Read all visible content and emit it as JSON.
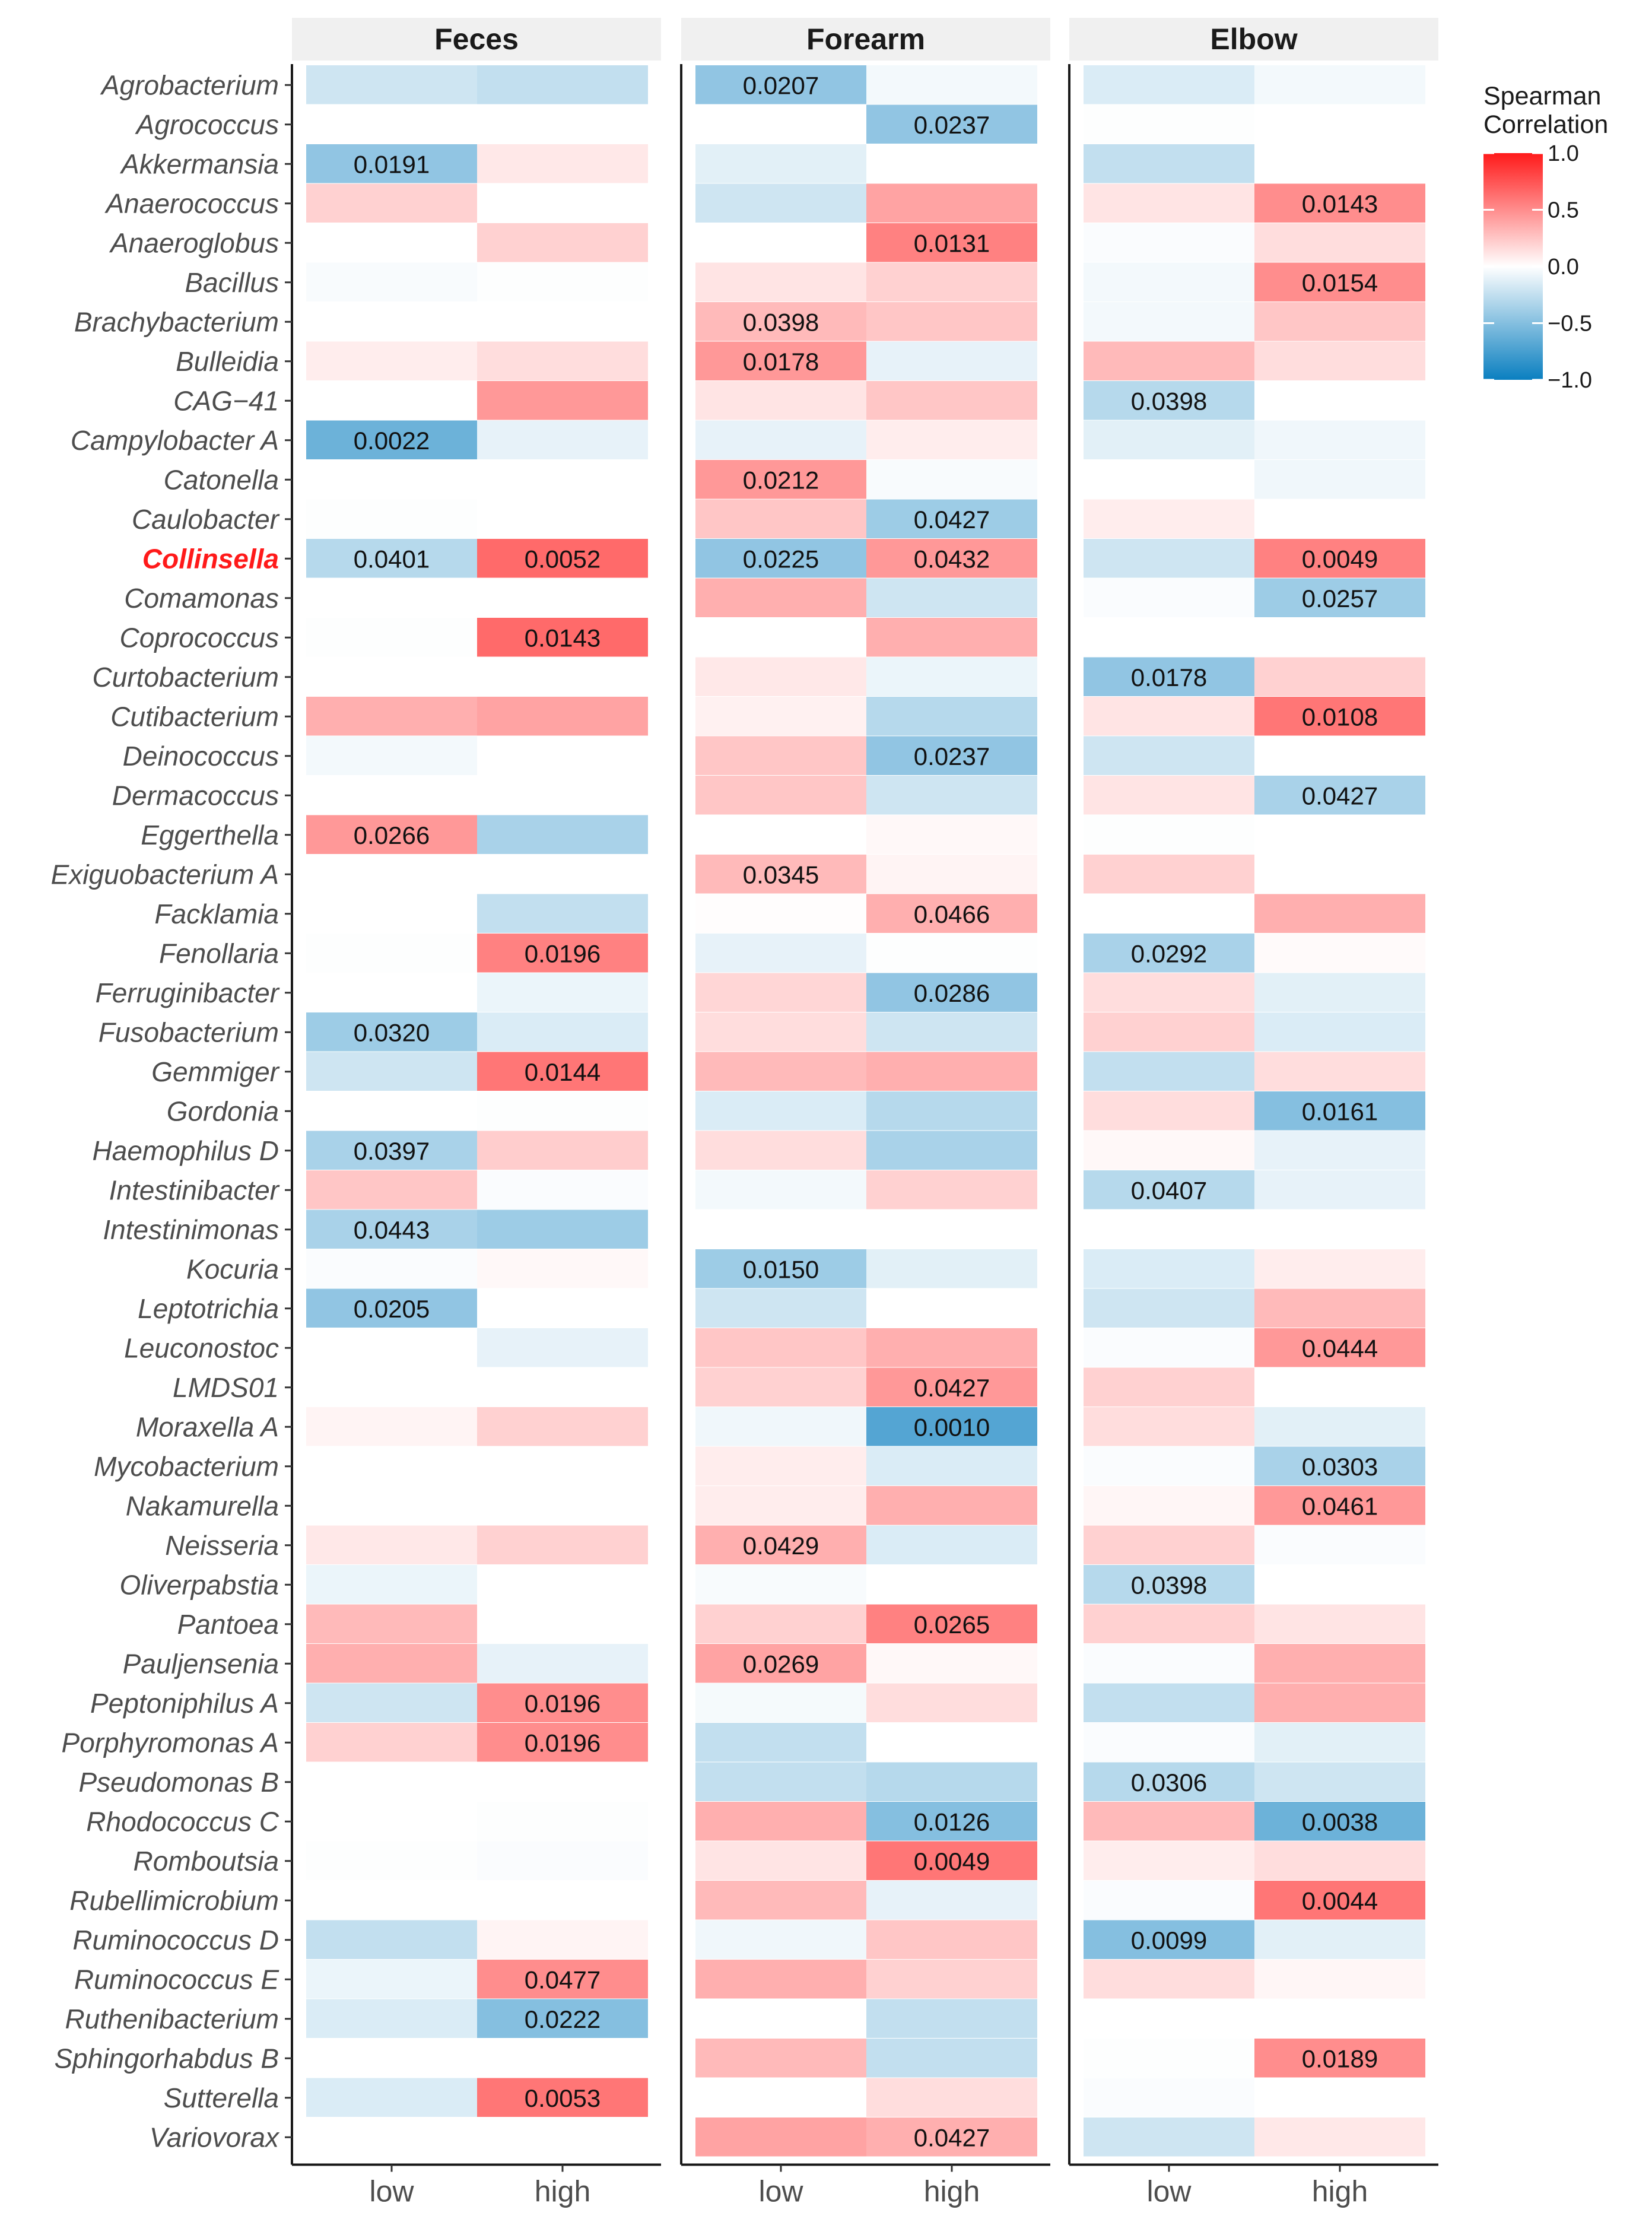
{
  "chart_data": {
    "type": "heatmap",
    "facets": [
      "Feces",
      "Forearm",
      "Elbow"
    ],
    "columns": [
      "low",
      "high"
    ],
    "highlight_row": "Collinsella",
    "rows": [
      "Agrobacterium",
      "Agrococcus",
      "Akkermansia",
      "Anaerococcus",
      "Anaeroglobus",
      "Bacillus",
      "Brachybacterium",
      "Bulleidia",
      "CAG−41",
      "Campylobacter A",
      "Catonella",
      "Caulobacter",
      "Collinsella",
      "Comamonas",
      "Coprococcus",
      "Curtobacterium",
      "Cutibacterium",
      "Deinococcus",
      "Dermacoccus",
      "Eggerthella",
      "Exiguobacterium A",
      "Facklamia",
      "Fenollaria",
      "Ferruginibacter",
      "Fusobacterium",
      "Gemmiger",
      "Gordonia",
      "Haemophilus D",
      "Intestinibacter",
      "Intestinimonas",
      "Kocuria",
      "Leptotrichia",
      "Leuconostoc",
      "LMDS01",
      "Moraxella A",
      "Mycobacterium",
      "Nakamurella",
      "Neisseria",
      "Oliverpabstia",
      "Pantoea",
      "Pauljensenia",
      "Peptoniphilus A",
      "Porphyromonas A",
      "Pseudomonas B",
      "Rhodococcus C",
      "Romboutsia",
      "Rubellimicrobium",
      "Ruminococcus D",
      "Ruminococcus E",
      "Ruthenibacterium",
      "Sphingorhabdus B",
      "Sutterella",
      "Variovorax"
    ],
    "values": {
      "Feces": [
        [
          -0.2,
          -0.25
        ],
        [
          null,
          null
        ],
        [
          -0.45,
          0.1
        ],
        [
          0.2,
          null
        ],
        [
          null,
          0.2
        ],
        [
          -0.03,
          -0.01
        ],
        [
          null,
          null
        ],
        [
          0.08,
          0.15
        ],
        [
          null,
          0.45
        ],
        [
          -0.6,
          -0.1
        ],
        [
          null,
          null
        ],
        [
          -0.01,
          null
        ],
        [
          -0.3,
          0.65
        ],
        [
          null,
          null
        ],
        [
          -0.01,
          0.65
        ],
        [
          null,
          null
        ],
        [
          0.35,
          0.4
        ],
        [
          -0.05,
          null
        ],
        [
          null,
          null
        ],
        [
          0.45,
          -0.35
        ],
        [
          null,
          null
        ],
        [
          null,
          -0.25
        ],
        [
          -0.01,
          0.55
        ],
        [
          null,
          -0.08
        ],
        [
          -0.4,
          -0.15
        ],
        [
          -0.2,
          0.6
        ],
        [
          null,
          -0.01
        ],
        [
          -0.35,
          0.22
        ],
        [
          0.25,
          -0.02
        ],
        [
          -0.35,
          -0.4
        ],
        [
          -0.02,
          0.03
        ],
        [
          -0.45,
          null
        ],
        [
          null,
          -0.1
        ],
        [
          null,
          null
        ],
        [
          0.05,
          0.2
        ],
        [
          null,
          null
        ],
        [
          null,
          null
        ],
        [
          0.1,
          0.2
        ],
        [
          -0.08,
          null
        ],
        [
          0.3,
          null
        ],
        [
          0.35,
          -0.1
        ],
        [
          -0.2,
          0.5
        ],
        [
          0.2,
          0.5
        ],
        [
          null,
          null
        ],
        [
          null,
          -0.01
        ],
        [
          -0.01,
          -0.02
        ],
        [
          null,
          null
        ],
        [
          -0.25,
          0.05
        ],
        [
          -0.08,
          0.5
        ],
        [
          -0.15,
          -0.5
        ],
        [
          null,
          null
        ],
        [
          -0.15,
          0.6
        ],
        [
          null,
          null
        ]
      ],
      "Forearm": [
        [
          -0.45,
          -0.05
        ],
        [
          null,
          -0.45
        ],
        [
          -0.12,
          null
        ],
        [
          -0.2,
          0.4
        ],
        [
          null,
          0.55
        ],
        [
          0.12,
          0.2
        ],
        [
          0.3,
          0.25
        ],
        [
          0.45,
          -0.1
        ],
        [
          0.12,
          0.25
        ],
        [
          -0.1,
          0.08
        ],
        [
          0.45,
          -0.03
        ],
        [
          0.25,
          -0.4
        ],
        [
          -0.45,
          0.45
        ],
        [
          0.35,
          -0.2
        ],
        [
          null,
          0.35
        ],
        [
          0.1,
          -0.08
        ],
        [
          0.06,
          -0.3
        ],
        [
          0.25,
          -0.45
        ],
        [
          0.25,
          -0.2
        ],
        [
          null,
          0.03
        ],
        [
          0.3,
          0.05
        ],
        [
          0.01,
          0.35
        ],
        [
          -0.1,
          -0.01
        ],
        [
          0.18,
          -0.45
        ],
        [
          0.15,
          -0.2
        ],
        [
          0.3,
          0.35
        ],
        [
          -0.15,
          -0.3
        ],
        [
          0.15,
          -0.35
        ],
        [
          -0.05,
          0.2
        ],
        [
          null,
          null
        ],
        [
          -0.4,
          -0.12
        ],
        [
          -0.2,
          null
        ],
        [
          0.25,
          0.35
        ],
        [
          0.2,
          0.45
        ],
        [
          -0.06,
          -0.7
        ],
        [
          0.08,
          -0.15
        ],
        [
          0.08,
          0.35
        ],
        [
          0.35,
          -0.15
        ],
        [
          -0.03,
          null
        ],
        [
          0.2,
          0.55
        ],
        [
          0.4,
          0.03
        ],
        [
          -0.04,
          0.15
        ],
        [
          -0.25,
          null
        ],
        [
          -0.25,
          -0.3
        ],
        [
          0.35,
          -0.5
        ],
        [
          0.12,
          0.6
        ],
        [
          0.3,
          -0.1
        ],
        [
          -0.06,
          0.25
        ],
        [
          0.35,
          0.2
        ],
        [
          null,
          -0.25
        ],
        [
          0.3,
          -0.25
        ],
        [
          null,
          0.15
        ],
        [
          0.4,
          0.35
        ]
      ],
      "Elbow": [
        [
          -0.15,
          -0.05
        ],
        [
          -0.01,
          null
        ],
        [
          -0.25,
          null
        ],
        [
          0.12,
          0.5
        ],
        [
          -0.02,
          0.15
        ],
        [
          -0.05,
          0.5
        ],
        [
          -0.05,
          0.25
        ],
        [
          0.3,
          0.15
        ],
        [
          -0.3,
          null
        ],
        [
          -0.12,
          -0.06
        ],
        [
          null,
          -0.06
        ],
        [
          0.08,
          null
        ],
        [
          -0.2,
          0.55
        ],
        [
          -0.02,
          -0.4
        ],
        [
          null,
          null
        ],
        [
          -0.45,
          0.2
        ],
        [
          0.12,
          0.6
        ],
        [
          -0.2,
          null
        ],
        [
          0.12,
          -0.35
        ],
        [
          -0.01,
          null
        ],
        [
          0.2,
          null
        ],
        [
          null,
          0.35
        ],
        [
          -0.35,
          0.02
        ],
        [
          0.15,
          -0.12
        ],
        [
          0.2,
          -0.15
        ],
        [
          -0.25,
          0.15
        ],
        [
          0.15,
          -0.5
        ],
        [
          0.03,
          -0.1
        ],
        [
          -0.3,
          -0.1
        ],
        [
          null,
          null
        ],
        [
          -0.15,
          0.08
        ],
        [
          -0.2,
          0.3
        ],
        [
          -0.02,
          0.45
        ],
        [
          0.2,
          null
        ],
        [
          0.15,
          -0.12
        ],
        [
          -0.02,
          -0.35
        ],
        [
          0.04,
          0.45
        ],
        [
          0.2,
          -0.02
        ],
        [
          -0.3,
          null
        ],
        [
          0.2,
          0.12
        ],
        [
          -0.02,
          0.35
        ],
        [
          -0.25,
          0.35
        ],
        [
          -0.02,
          -0.12
        ],
        [
          -0.3,
          -0.2
        ],
        [
          0.3,
          -0.6
        ],
        [
          0.08,
          0.15
        ],
        [
          -0.02,
          0.6
        ],
        [
          -0.5,
          -0.12
        ],
        [
          0.15,
          0.04
        ],
        [
          null,
          null
        ],
        [
          -0.01,
          0.5
        ],
        [
          -0.02,
          null
        ],
        [
          -0.2,
          0.1
        ]
      ]
    },
    "cell_labels": [
      {
        "facet": "Feces",
        "row": "Akkermansia",
        "col": "low",
        "text": "0.0191"
      },
      {
        "facet": "Feces",
        "row": "Campylobacter A",
        "col": "low",
        "text": "0.0022"
      },
      {
        "facet": "Feces",
        "row": "Collinsella",
        "col": "low",
        "text": "0.0401"
      },
      {
        "facet": "Feces",
        "row": "Collinsella",
        "col": "high",
        "text": "0.0052"
      },
      {
        "facet": "Feces",
        "row": "Coprococcus",
        "col": "high",
        "text": "0.0143"
      },
      {
        "facet": "Feces",
        "row": "Eggerthella",
        "col": "low",
        "text": "0.0266"
      },
      {
        "facet": "Feces",
        "row": "Fenollaria",
        "col": "high",
        "text": "0.0196"
      },
      {
        "facet": "Feces",
        "row": "Fusobacterium",
        "col": "low",
        "text": "0.0320"
      },
      {
        "facet": "Feces",
        "row": "Gemmiger",
        "col": "high",
        "text": "0.0144"
      },
      {
        "facet": "Feces",
        "row": "Haemophilus D",
        "col": "low",
        "text": "0.0397"
      },
      {
        "facet": "Feces",
        "row": "Intestinimonas",
        "col": "low",
        "text": "0.0443"
      },
      {
        "facet": "Feces",
        "row": "Leptotrichia",
        "col": "low",
        "text": "0.0205"
      },
      {
        "facet": "Feces",
        "row": "Peptoniphilus A",
        "col": "high",
        "text": "0.0196"
      },
      {
        "facet": "Feces",
        "row": "Porphyromonas A",
        "col": "high",
        "text": "0.0196"
      },
      {
        "facet": "Feces",
        "row": "Ruminococcus E",
        "col": "high",
        "text": "0.0477"
      },
      {
        "facet": "Feces",
        "row": "Ruthenibacterium",
        "col": "high",
        "text": "0.0222"
      },
      {
        "facet": "Feces",
        "row": "Sutterella",
        "col": "high",
        "text": "0.0053"
      },
      {
        "facet": "Forearm",
        "row": "Agrobacterium",
        "col": "low",
        "text": "0.0207"
      },
      {
        "facet": "Forearm",
        "row": "Agrococcus",
        "col": "high",
        "text": "0.0237"
      },
      {
        "facet": "Forearm",
        "row": "Anaeroglobus",
        "col": "high",
        "text": "0.0131"
      },
      {
        "facet": "Forearm",
        "row": "Brachybacterium",
        "col": "low",
        "text": "0.0398"
      },
      {
        "facet": "Forearm",
        "row": "Bulleidia",
        "col": "low",
        "text": "0.0178"
      },
      {
        "facet": "Forearm",
        "row": "Catonella",
        "col": "low",
        "text": "0.0212"
      },
      {
        "facet": "Forearm",
        "row": "Caulobacter",
        "col": "high",
        "text": "0.0427"
      },
      {
        "facet": "Forearm",
        "row": "Collinsella",
        "col": "low",
        "text": "0.0225"
      },
      {
        "facet": "Forearm",
        "row": "Collinsella",
        "col": "high",
        "text": "0.0432"
      },
      {
        "facet": "Forearm",
        "row": "Deinococcus",
        "col": "high",
        "text": "0.0237"
      },
      {
        "facet": "Forearm",
        "row": "Exiguobacterium A",
        "col": "low",
        "text": "0.0345"
      },
      {
        "facet": "Forearm",
        "row": "Facklamia",
        "col": "high",
        "text": "0.0466"
      },
      {
        "facet": "Forearm",
        "row": "Ferruginibacter",
        "col": "high",
        "text": "0.0286"
      },
      {
        "facet": "Forearm",
        "row": "Kocuria",
        "col": "low",
        "text": "0.0150"
      },
      {
        "facet": "Forearm",
        "row": "LMDS01",
        "col": "high",
        "text": "0.0427"
      },
      {
        "facet": "Forearm",
        "row": "Moraxella A",
        "col": "high",
        "text": "0.0010"
      },
      {
        "facet": "Forearm",
        "row": "Neisseria",
        "col": "low",
        "text": "0.0429"
      },
      {
        "facet": "Forearm",
        "row": "Pantoea",
        "col": "high",
        "text": "0.0265"
      },
      {
        "facet": "Forearm",
        "row": "Pauljensenia",
        "col": "low",
        "text": "0.0269"
      },
      {
        "facet": "Forearm",
        "row": "Rhodococcus C",
        "col": "high",
        "text": "0.0126"
      },
      {
        "facet": "Forearm",
        "row": "Romboutsia",
        "col": "high",
        "text": "0.0049"
      },
      {
        "facet": "Forearm",
        "row": "Variovorax",
        "col": "high",
        "text": "0.0427"
      },
      {
        "facet": "Elbow",
        "row": "Anaerococcus",
        "col": "high",
        "text": "0.0143"
      },
      {
        "facet": "Elbow",
        "row": "Bacillus",
        "col": "high",
        "text": "0.0154"
      },
      {
        "facet": "Elbow",
        "row": "CAG−41",
        "col": "low",
        "text": "0.0398"
      },
      {
        "facet": "Elbow",
        "row": "Collinsella",
        "col": "high",
        "text": "0.0049"
      },
      {
        "facet": "Elbow",
        "row": "Comamonas",
        "col": "high",
        "text": "0.0257"
      },
      {
        "facet": "Elbow",
        "row": "Curtobacterium",
        "col": "low",
        "text": "0.0178"
      },
      {
        "facet": "Elbow",
        "row": "Cutibacterium",
        "col": "high",
        "text": "0.0108"
      },
      {
        "facet": "Elbow",
        "row": "Dermacoccus",
        "col": "high",
        "text": "0.0427"
      },
      {
        "facet": "Elbow",
        "row": "Fenollaria",
        "col": "low",
        "text": "0.0292"
      },
      {
        "facet": "Elbow",
        "row": "Gordonia",
        "col": "high",
        "text": "0.0161"
      },
      {
        "facet": "Elbow",
        "row": "Intestinibacter",
        "col": "low",
        "text": "0.0407"
      },
      {
        "facet": "Elbow",
        "row": "Leuconostoc",
        "col": "high",
        "text": "0.0444"
      },
      {
        "facet": "Elbow",
        "row": "Mycobacterium",
        "col": "high",
        "text": "0.0303"
      },
      {
        "facet": "Elbow",
        "row": "Nakamurella",
        "col": "high",
        "text": "0.0461"
      },
      {
        "facet": "Elbow",
        "row": "Oliverpabstia",
        "col": "low",
        "text": "0.0398"
      },
      {
        "facet": "Elbow",
        "row": "Pseudomonas B",
        "col": "low",
        "text": "0.0306"
      },
      {
        "facet": "Elbow",
        "row": "Rhodococcus C",
        "col": "high",
        "text": "0.0038"
      },
      {
        "facet": "Elbow",
        "row": "Rubellimicrobium",
        "col": "high",
        "text": "0.0044"
      },
      {
        "facet": "Elbow",
        "row": "Ruminococcus D",
        "col": "low",
        "text": "0.0099"
      },
      {
        "facet": "Elbow",
        "row": "Sphingorhabdus B",
        "col": "high",
        "text": "0.0189"
      }
    ],
    "legend": {
      "title": [
        "Spearman",
        "Correlation"
      ],
      "range": [
        -1,
        1
      ],
      "ticks": [
        1.0,
        0.5,
        0.0,
        -0.5,
        -1.0
      ],
      "tick_labels": [
        "1.0",
        "0.5",
        "0.0",
        "−0.5",
        "−1.0"
      ],
      "low_color": "#0a7fc0",
      "mid_color": "#ffffff",
      "high_color": "#ff1a1a"
    }
  }
}
